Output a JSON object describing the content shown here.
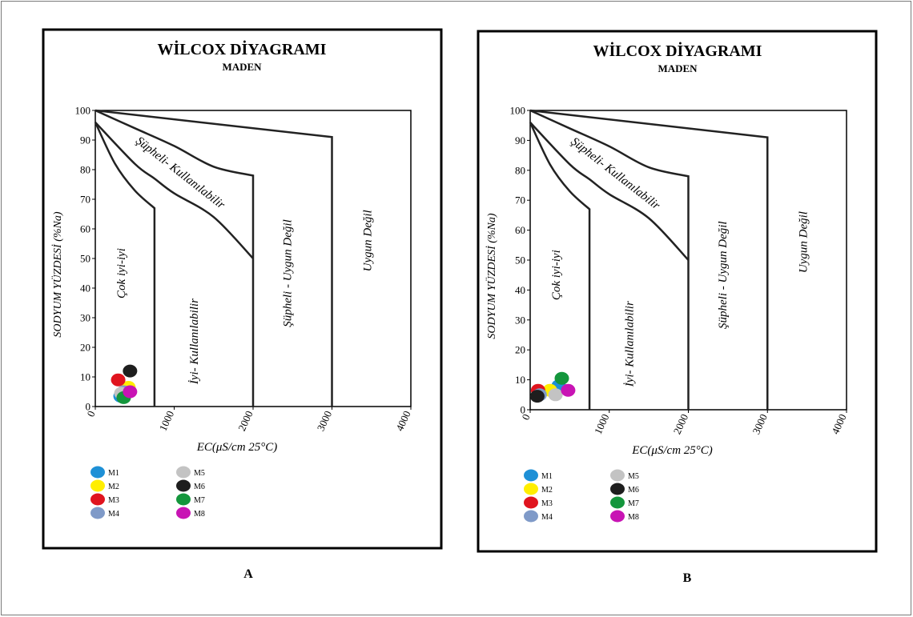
{
  "panels": [
    {
      "id": "A",
      "title": "WİLCOX DİYAGRAMI",
      "subtitle": "MADEN",
      "caption": "A",
      "points": [
        {
          "label": "M1",
          "ec": 320,
          "na": 3.5
        },
        {
          "label": "M2",
          "ec": 420,
          "na": 6.5
        },
        {
          "label": "M3",
          "ec": 290,
          "na": 9
        },
        {
          "label": "M4",
          "ec": 360,
          "na": 5
        },
        {
          "label": "M5",
          "ec": 330,
          "na": 4.5
        },
        {
          "label": "M6",
          "ec": 440,
          "na": 12
        },
        {
          "label": "M7",
          "ec": 360,
          "na": 3
        },
        {
          "label": "M8",
          "ec": 440,
          "na": 5
        }
      ]
    },
    {
      "id": "B",
      "title": "WİLCOX DİYAGRAMI",
      "subtitle": "MADEN",
      "caption": "B",
      "points": [
        {
          "label": "M1",
          "ec": 360,
          "na": 8
        },
        {
          "label": "M2",
          "ec": 250,
          "na": 6.5
        },
        {
          "label": "M3",
          "ec": 100,
          "na": 6.5
        },
        {
          "label": "M4",
          "ec": 120,
          "na": 5
        },
        {
          "label": "M5",
          "ec": 320,
          "na": 5
        },
        {
          "label": "M6",
          "ec": 90,
          "na": 4.5
        },
        {
          "label": "M7",
          "ec": 400,
          "na": 10.5
        },
        {
          "label": "M8",
          "ec": 480,
          "na": 6.5
        }
      ]
    }
  ],
  "chart_data": {
    "type": "scatter",
    "xlabel": "EC(μS/cm 25°C)",
    "ylabel": "SODYUM YÜZDESİ (%Na)",
    "xlim": [
      0,
      4000
    ],
    "ylim": [
      0,
      100
    ],
    "xticks": [
      "0",
      "1000",
      "2000",
      "3000",
      "4000"
    ],
    "yticks": [
      "0",
      "10",
      "20",
      "30",
      "40",
      "50",
      "60",
      "70",
      "80",
      "90",
      "100"
    ],
    "regions": [
      "Çok iyi-iyi",
      "İyi- Kullanılabilir",
      "Şüpheli- Kullanılabilir",
      "Şüpheli - Uygun Değil",
      "Uygun Değil"
    ],
    "legend": [
      {
        "label": "M1",
        "color": "#1e90d6"
      },
      {
        "label": "M2",
        "color": "#ffee00"
      },
      {
        "label": "M3",
        "color": "#e0141e"
      },
      {
        "label": "M4",
        "color": "#7f9ac8"
      },
      {
        "label": "M5",
        "color": "#c3c3c3"
      },
      {
        "label": "M6",
        "color": "#1e1e1e"
      },
      {
        "label": "M7",
        "color": "#14963c"
      },
      {
        "label": "M8",
        "color": "#c814b4"
      }
    ],
    "boundaries": {
      "outer": [
        [
          0,
          100
        ],
        [
          3000,
          91
        ],
        [
          3000,
          0
        ]
      ],
      "line_to_2000": [
        [
          0,
          100
        ],
        [
          500,
          94
        ],
        [
          1000,
          88
        ],
        [
          1500,
          81
        ],
        [
          2000,
          78
        ],
        [
          2000,
          0
        ]
      ],
      "curve_to_750": [
        [
          0,
          96
        ],
        [
          500,
          82
        ],
        [
          750,
          77
        ],
        [
          1000,
          72
        ],
        [
          1500,
          64
        ],
        [
          2000,
          50
        ]
      ],
      "inner": [
        [
          0,
          96
        ],
        [
          250,
          82
        ],
        [
          500,
          73
        ],
        [
          750,
          67
        ],
        [
          750,
          0
        ]
      ]
    }
  }
}
